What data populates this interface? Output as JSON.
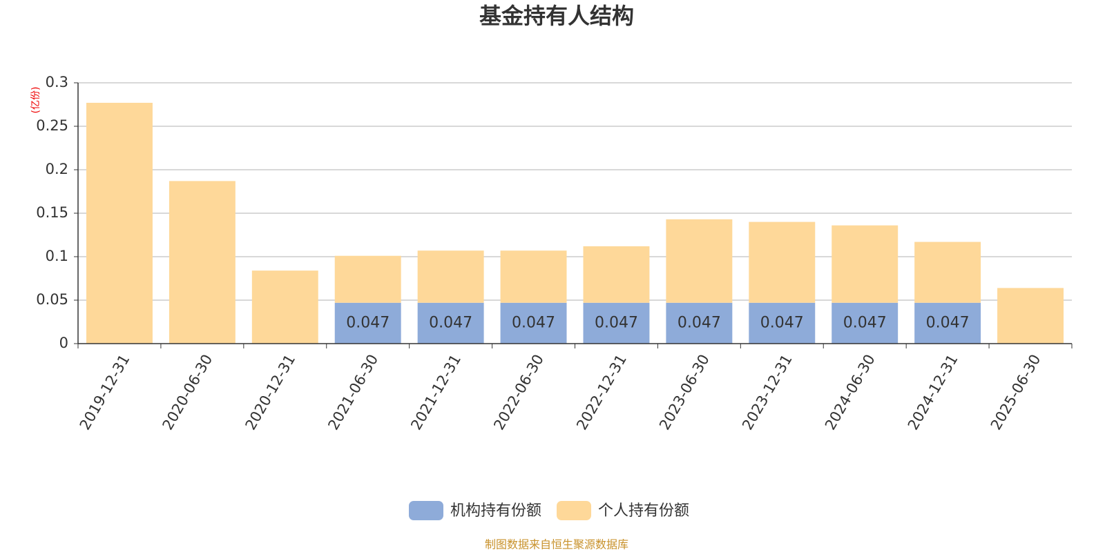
{
  "chart_data": {
    "type": "stacked-bar",
    "title": "基金持有人结构",
    "y_label": "(亿份)",
    "categories": [
      "2019-12-31",
      "2020-06-30",
      "2020-12-31",
      "2021-06-30",
      "2021-12-31",
      "2022-06-30",
      "2022-12-31",
      "2023-06-30",
      "2023-12-31",
      "2024-06-30",
      "2024-12-31",
      "2025-06-30"
    ],
    "series": [
      {
        "name": "机构持有份额",
        "color": "#8eabd9",
        "values": [
          null,
          null,
          null,
          0.047,
          0.047,
          0.047,
          0.047,
          0.047,
          0.047,
          0.047,
          0.047,
          0
        ]
      },
      {
        "name": "个人持有份额",
        "color": "#fed899",
        "values": [
          0.277,
          0.187,
          0.084,
          0.054,
          0.06,
          0.06,
          0.065,
          0.096,
          0.093,
          0.089,
          0.07,
          0.064
        ]
      }
    ],
    "ylim": [
      0,
      0.3
    ],
    "yticks": [
      0,
      0.05,
      0.1,
      0.15,
      0.2,
      0.25,
      0.3
    ],
    "grid": true,
    "footer": "制图数据来自恒生聚源数据库"
  }
}
